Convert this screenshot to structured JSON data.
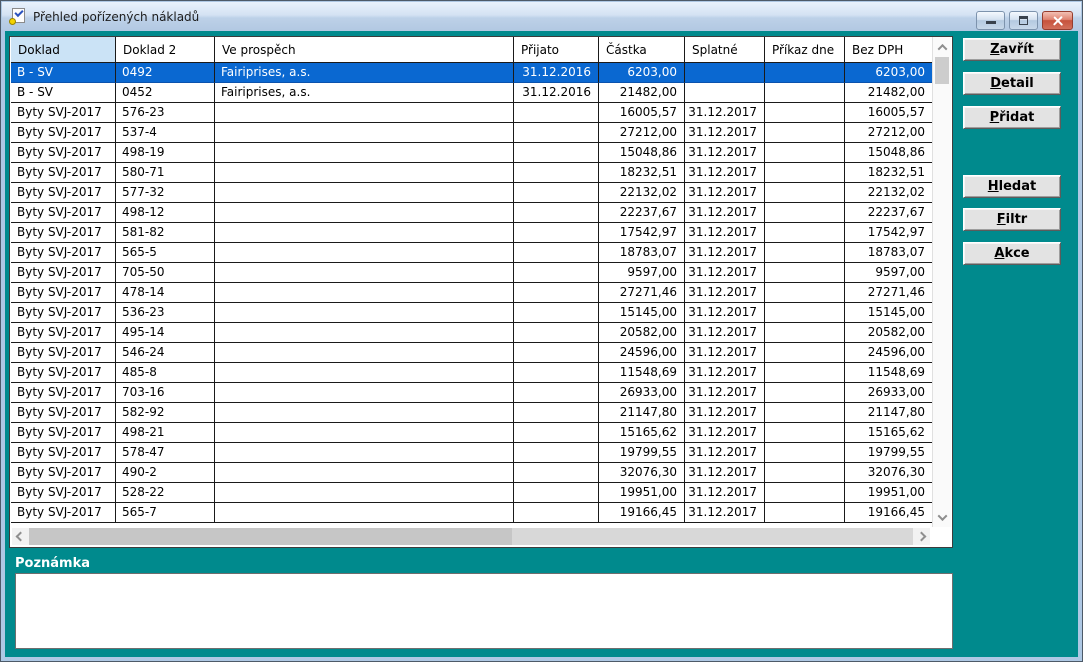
{
  "window": {
    "title": "Přehled pořízených nákladů",
    "icons": {
      "app": "document-check-coin",
      "minimize": "minimize",
      "maximize": "maximize",
      "close": "close"
    }
  },
  "table": {
    "columns": [
      {
        "label": "Doklad",
        "align": "left",
        "sorted": true
      },
      {
        "label": "Doklad 2",
        "align": "left",
        "sorted": false
      },
      {
        "label": "Ve prospěch",
        "align": "left",
        "sorted": false
      },
      {
        "label": "Přijato",
        "align": "right",
        "sorted": false
      },
      {
        "label": "Částka",
        "align": "right",
        "sorted": false
      },
      {
        "label": "Splatné",
        "align": "right",
        "sorted": false
      },
      {
        "label": "Příkaz dne",
        "align": "right",
        "sorted": false
      },
      {
        "label": "Bez DPH",
        "align": "right",
        "sorted": false
      }
    ],
    "selected_row_index": 0,
    "rows": [
      [
        "B - SV",
        "0492",
        "Fairiprises, a.s.",
        "31.12.2016",
        "6203,00",
        "",
        "",
        "6203,00"
      ],
      [
        "B - SV",
        "0452",
        "Fairiprises, a.s.",
        "31.12.2016",
        "21482,00",
        "",
        "",
        "21482,00"
      ],
      [
        "Byty SVJ-2017",
        "576-23",
        "",
        "",
        "16005,57",
        "31.12.2017",
        "",
        "16005,57"
      ],
      [
        "Byty SVJ-2017",
        "537-4",
        "",
        "",
        "27212,00",
        "31.12.2017",
        "",
        "27212,00"
      ],
      [
        "Byty SVJ-2017",
        "498-19",
        "",
        "",
        "15048,86",
        "31.12.2017",
        "",
        "15048,86"
      ],
      [
        "Byty SVJ-2017",
        "580-71",
        "",
        "",
        "18232,51",
        "31.12.2017",
        "",
        "18232,51"
      ],
      [
        "Byty SVJ-2017",
        "577-32",
        "",
        "",
        "22132,02",
        "31.12.2017",
        "",
        "22132,02"
      ],
      [
        "Byty SVJ-2017",
        "498-12",
        "",
        "",
        "22237,67",
        "31.12.2017",
        "",
        "22237,67"
      ],
      [
        "Byty SVJ-2017",
        "581-82",
        "",
        "",
        "17542,97",
        "31.12.2017",
        "",
        "17542,97"
      ],
      [
        "Byty SVJ-2017",
        "565-5",
        "",
        "",
        "18783,07",
        "31.12.2017",
        "",
        "18783,07"
      ],
      [
        "Byty SVJ-2017",
        "705-50",
        "",
        "",
        "9597,00",
        "31.12.2017",
        "",
        "9597,00"
      ],
      [
        "Byty SVJ-2017",
        "478-14",
        "",
        "",
        "27271,46",
        "31.12.2017",
        "",
        "27271,46"
      ],
      [
        "Byty SVJ-2017",
        "536-23",
        "",
        "",
        "15145,00",
        "31.12.2017",
        "",
        "15145,00"
      ],
      [
        "Byty SVJ-2017",
        "495-14",
        "",
        "",
        "20582,00",
        "31.12.2017",
        "",
        "20582,00"
      ],
      [
        "Byty SVJ-2017",
        "546-24",
        "",
        "",
        "24596,00",
        "31.12.2017",
        "",
        "24596,00"
      ],
      [
        "Byty SVJ-2017",
        "485-8",
        "",
        "",
        "11548,69",
        "31.12.2017",
        "",
        "11548,69"
      ],
      [
        "Byty SVJ-2017",
        "703-16",
        "",
        "",
        "26933,00",
        "31.12.2017",
        "",
        "26933,00"
      ],
      [
        "Byty SVJ-2017",
        "582-92",
        "",
        "",
        "21147,80",
        "31.12.2017",
        "",
        "21147,80"
      ],
      [
        "Byty SVJ-2017",
        "498-21",
        "",
        "",
        "15165,62",
        "31.12.2017",
        "",
        "15165,62"
      ],
      [
        "Byty SVJ-2017",
        "578-47",
        "",
        "",
        "19799,55",
        "31.12.2017",
        "",
        "19799,55"
      ],
      [
        "Byty SVJ-2017",
        "490-2",
        "",
        "",
        "32076,30",
        "31.12.2017",
        "",
        "32076,30"
      ],
      [
        "Byty SVJ-2017",
        "528-22",
        "",
        "",
        "19951,00",
        "31.12.2017",
        "",
        "19951,00"
      ],
      [
        "Byty SVJ-2017",
        "565-7",
        "",
        "",
        "19166,45",
        "31.12.2017",
        "",
        "19166,45"
      ]
    ]
  },
  "buttons": [
    {
      "name": "close-view-button",
      "label": "Zavřít",
      "mnemonic": "Z"
    },
    {
      "name": "detail-button",
      "label": "Detail",
      "mnemonic": "D"
    },
    {
      "name": "add-button",
      "label": "Přidat",
      "mnemonic": "P"
    },
    {
      "name": "search-button",
      "label": "Hledat",
      "mnemonic": "H"
    },
    {
      "name": "filter-button",
      "label": "Filtr",
      "mnemonic": "F"
    },
    {
      "name": "action-button",
      "label": "Akce",
      "mnemonic": "A"
    }
  ],
  "note": {
    "label": "Poznámka",
    "value": ""
  },
  "colors": {
    "background_teal": "#008a8d",
    "selected_row": "#0a68d1",
    "sorted_header": "#cbe3f6",
    "titlebar_gradient_top": "#e9f2fc",
    "titlebar_gradient_bottom": "#b2c8e2",
    "close_button_red": "#c6523c"
  }
}
